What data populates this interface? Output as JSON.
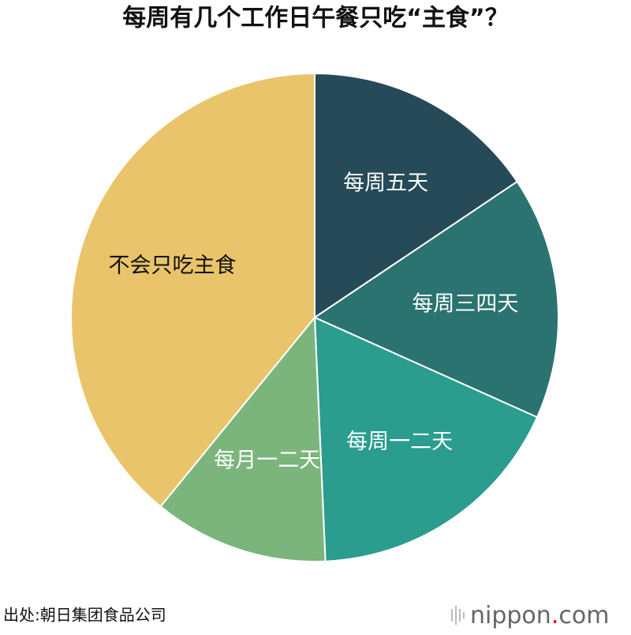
{
  "chart_data": {
    "type": "pie",
    "title": "每周有几个工作日午餐只吃“主食”？",
    "categories": [
      "每周五天",
      "每周三四天",
      "每周一二天",
      "每月一二天",
      "不会只吃主食"
    ],
    "values": [
      15.6,
      16.1,
      17.6,
      11.6,
      39.1
    ],
    "colors": [
      "#264a57",
      "#2a7370",
      "#2a9d8f",
      "#7bb57c",
      "#e9c46a"
    ],
    "source": "出处:朝日集团食品公司",
    "logo": [
      "nippon",
      ".",
      "com"
    ]
  }
}
